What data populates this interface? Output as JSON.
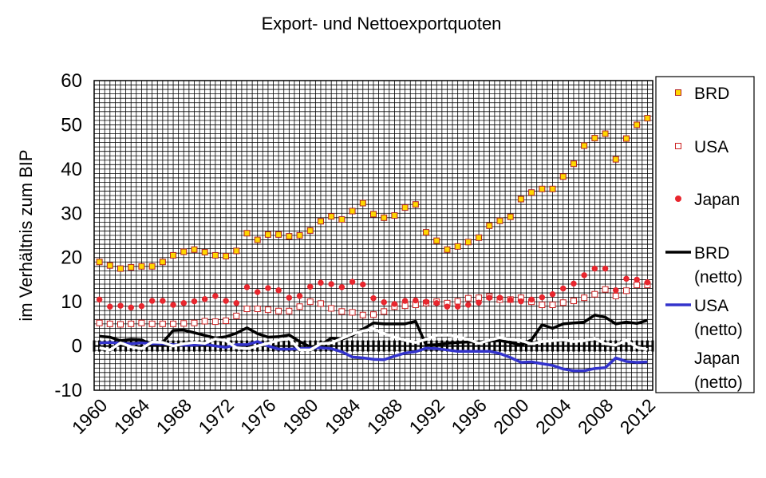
{
  "chart_data": {
    "type": "scatter",
    "title": "Export- und Nettoexportquoten",
    "ylabel": "im Verhältnis zum BIP",
    "xlabel": "",
    "xlim": [
      1959.5,
      2012.5
    ],
    "ylim": [
      -10,
      60
    ],
    "grid": true,
    "legend_position": "right",
    "x_ticks": [
      {
        "value": 1960,
        "label": "1960"
      },
      {
        "value": 1964,
        "label": "1964"
      },
      {
        "value": 1968,
        "label": "1968"
      },
      {
        "value": 1972,
        "label": "1972"
      },
      {
        "value": 1976,
        "label": "1976"
      },
      {
        "value": 1980,
        "label": "1980"
      },
      {
        "value": 1984,
        "label": "1984"
      },
      {
        "value": 1988,
        "label": "1988"
      },
      {
        "value": 1992,
        "label": "1992"
      },
      {
        "value": 1996,
        "label": "1996"
      },
      {
        "value": 2000,
        "label": "2000"
      },
      {
        "value": 2004,
        "label": "2004"
      },
      {
        "value": 2008,
        "label": "2008"
      },
      {
        "value": 2012,
        "label": "2012"
      }
    ],
    "y_ticks": [
      {
        "value": 60,
        "label": "60"
      },
      {
        "value": 50,
        "label": "50"
      },
      {
        "value": 40,
        "label": "40"
      },
      {
        "value": 30,
        "label": "30"
      },
      {
        "value": 20,
        "label": "20"
      },
      {
        "value": 10,
        "label": "10"
      },
      {
        "value": 0,
        "label": "0"
      },
      {
        "value": -10,
        "label": "-10"
      }
    ],
    "x": [
      1960,
      1961,
      1962,
      1963,
      1964,
      1965,
      1966,
      1967,
      1968,
      1969,
      1970,
      1971,
      1972,
      1973,
      1974,
      1975,
      1976,
      1977,
      1978,
      1979,
      1980,
      1981,
      1982,
      1983,
      1984,
      1985,
      1986,
      1987,
      1988,
      1989,
      1990,
      1991,
      1992,
      1993,
      1994,
      1995,
      1996,
      1997,
      1998,
      1999,
      2000,
      2001,
      2002,
      2003,
      2004,
      2005,
      2006,
      2007,
      2008,
      2009,
      2010,
      2011,
      2012
    ],
    "series": [
      {
        "name": "BRD",
        "kind": "marker",
        "marker": "square",
        "fill": "#ffd700",
        "stroke": "#b22222",
        "values": [
          19.0,
          18.2,
          17.5,
          17.8,
          18.0,
          18.0,
          19.0,
          20.5,
          21.3,
          21.8,
          21.2,
          20.5,
          20.3,
          21.5,
          25.5,
          24.0,
          25.2,
          25.2,
          24.8,
          25.0,
          26.1,
          28.2,
          29.3,
          28.6,
          30.5,
          32.3,
          29.8,
          29.0,
          29.5,
          31.3,
          32.0,
          25.7,
          23.8,
          21.8,
          22.5,
          23.5,
          24.5,
          27.2,
          28.3,
          29.2,
          33.2,
          34.7,
          35.5,
          35.5,
          38.3,
          41.2,
          45.3,
          47.0,
          48.0,
          42.2,
          46.9,
          50.0,
          51.5
        ]
      },
      {
        "name": "USA",
        "kind": "marker",
        "marker": "square",
        "fill": "#ffffff",
        "stroke": "#cc2222",
        "values": [
          5.2,
          5.0,
          4.9,
          5.0,
          5.2,
          5.0,
          5.0,
          5.0,
          5.1,
          5.2,
          5.6,
          5.5,
          5.7,
          6.8,
          8.4,
          8.4,
          8.2,
          7.9,
          7.9,
          8.9,
          10.0,
          9.6,
          8.5,
          7.8,
          7.6,
          7.0,
          7.1,
          7.8,
          8.9,
          9.1,
          9.3,
          9.7,
          10.0,
          9.7,
          10.1,
          10.8,
          10.9,
          11.2,
          10.5,
          10.5,
          10.9,
          10.0,
          9.3,
          9.3,
          9.8,
          10.2,
          10.9,
          11.7,
          12.8,
          11.3,
          12.5,
          13.8,
          13.8
        ]
      },
      {
        "name": "Japan",
        "kind": "marker",
        "marker": "circle",
        "fill": "#e8262e",
        "stroke": "#e8262e",
        "values": [
          10.5,
          8.9,
          9.1,
          8.7,
          9.0,
          10.2,
          10.2,
          9.3,
          9.7,
          10.1,
          10.6,
          11.3,
          10.2,
          9.7,
          13.3,
          12.2,
          13.1,
          12.6,
          10.9,
          11.3,
          13.4,
          14.3,
          14.0,
          13.3,
          14.5,
          13.9,
          10.8,
          9.9,
          9.5,
          10.2,
          10.3,
          10.0,
          9.7,
          8.9,
          8.9,
          9.3,
          9.8,
          10.9,
          10.9,
          10.4,
          10.1,
          10.5,
          11.0,
          11.7,
          13.0,
          14.1,
          16.0,
          17.5,
          17.5,
          12.6,
          15.2,
          15.0,
          14.4
        ]
      },
      {
        "name": "BRD\n(netto)",
        "kind": "line",
        "color": "#000000",
        "values": [
          2.2,
          2.0,
          1.2,
          1.5,
          1.4,
          0.2,
          0.8,
          3.5,
          3.6,
          3.0,
          2.4,
          1.8,
          2.1,
          2.9,
          4.1,
          2.8,
          2.0,
          2.1,
          2.5,
          1.0,
          -0.2,
          0.2,
          1.8,
          1.5,
          2.4,
          3.8,
          5.2,
          5.0,
          5.0,
          5.0,
          5.6,
          0.2,
          0.3,
          0.6,
          0.8,
          0.9,
          0.9,
          1.1,
          1.2,
          0.8,
          0.2,
          1.4,
          4.8,
          4.0,
          5.0,
          5.2,
          5.4,
          7.0,
          6.5,
          5.0,
          5.4,
          5.1,
          5.8
        ]
      },
      {
        "name": "USA\n(netto)",
        "kind": "line",
        "color": "#3333cc",
        "values": [
          0.7,
          0.8,
          0.6,
          0.5,
          0.7,
          0.5,
          0.5,
          0.3,
          0.2,
          0.2,
          0.4,
          0.0,
          -0.3,
          0.3,
          0.3,
          1.0,
          0.0,
          -0.7,
          -0.7,
          -0.6,
          -0.5,
          -0.4,
          -0.6,
          -1.3,
          -2.5,
          -2.7,
          -3.0,
          -3.1,
          -2.3,
          -1.6,
          -1.3,
          -0.5,
          -0.6,
          -0.9,
          -1.2,
          -1.2,
          -1.2,
          -1.2,
          -1.7,
          -2.6,
          -3.7,
          -3.6,
          -4.0,
          -4.4,
          -5.2,
          -5.6,
          -5.6,
          -5.1,
          -4.9,
          -2.7,
          -3.5,
          -3.7,
          -3.6
        ]
      },
      {
        "name": "Japan\n(netto)",
        "kind": "line",
        "color": "#ffffff",
        "values": [
          -0.4,
          -0.9,
          0.7,
          -0.2,
          -0.6,
          0.9,
          0.8,
          0.0,
          0.5,
          0.8,
          0.6,
          1.6,
          1.2,
          -0.4,
          -0.6,
          0.0,
          0.6,
          1.3,
          1.7,
          -0.9,
          -0.9,
          0.5,
          0.7,
          1.7,
          2.7,
          3.4,
          3.9,
          2.8,
          2.0,
          1.3,
          0.8,
          1.5,
          2.4,
          2.5,
          2.1,
          1.5,
          0.6,
          1.3,
          1.9,
          1.5,
          1.2,
          0.5,
          1.0,
          1.2,
          1.4,
          1.0,
          1.2,
          1.7,
          0.5,
          0.2,
          1.3,
          -0.3,
          -0.8
        ]
      }
    ]
  }
}
